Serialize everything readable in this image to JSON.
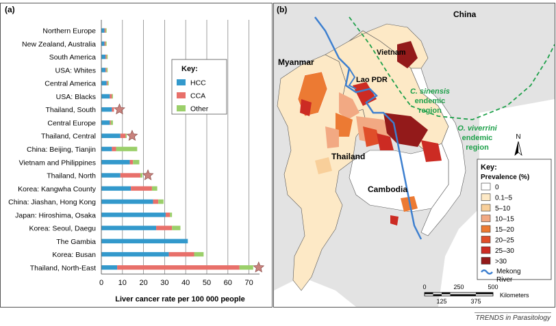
{
  "figure": {
    "panel_a_label": "(a)",
    "panel_b_label": "(b)",
    "footer": "TRENDS in Parasitology"
  },
  "chart_data": {
    "type": "bar",
    "orientation": "horizontal",
    "stacked": true,
    "xlabel": "Liver cancer rate per 100 000 people",
    "ylabel": "",
    "xlim": [
      0,
      75
    ],
    "xticks": [
      0,
      10,
      20,
      30,
      40,
      50,
      60,
      70
    ],
    "grid": "vertical",
    "legend": {
      "title": "Key:",
      "placement": "center-right",
      "entries": [
        "HCC",
        "CCA",
        "Other"
      ]
    },
    "colors": {
      "HCC": "#3399cc",
      "CCA": "#e8706a",
      "Other": "#9bcf6a",
      "star": "#c9827d"
    },
    "categories": [
      "Northern Europe",
      "New Zealand, Australia",
      "South America",
      "USA: Whites",
      "Central America",
      "USA: Blacks",
      "Thailand, South",
      "Central Europe",
      "Thailand, Central",
      "China: Beijing, Tianjin",
      "Vietnam and Philippines",
      "Thailand, North",
      "Korea: Kangwha County",
      "China: Jiashan, Hong Kong",
      "Japan: Hiroshima, Osaka",
      "Korea: Seoul, Daegu",
      "The Gambia",
      "Korea: Busan",
      "Thailand, North-East"
    ],
    "series": [
      {
        "name": "HCC",
        "values": [
          1.5,
          1.5,
          2,
          2,
          2.5,
          4,
          5,
          4,
          9,
          5,
          13.5,
          9,
          14,
          24.5,
          30.5,
          26,
          41,
          32,
          7.5
        ]
      },
      {
        "name": "CCA",
        "values": [
          0.5,
          0.5,
          0.5,
          0.5,
          0.5,
          1,
          1,
          0.5,
          2.5,
          2,
          1.5,
          9.5,
          10,
          2.5,
          2,
          7.5,
          0,
          12,
          58
        ]
      },
      {
        "name": "Other",
        "values": [
          0.5,
          0.5,
          0.5,
          0.5,
          0.5,
          0.5,
          0,
          1,
          0.5,
          10,
          3,
          1,
          2.5,
          2.5,
          1,
          4,
          0,
          4.5,
          6.5
        ]
      }
    ],
    "starred": [
      "Thailand, South",
      "Thailand, Central",
      "Thailand, North",
      "Thailand, North-East"
    ]
  },
  "map": {
    "labels": {
      "china": "China",
      "myanmar": "Myanmar",
      "vietnam": "Vietnam",
      "laos": "Lao PDR",
      "thailand": "Thailand",
      "cambodia": "Cambodia",
      "north": "N"
    },
    "csinensis": [
      "C. sinensis",
      "endemic",
      "region"
    ],
    "oviverrini": [
      "O. viverrini",
      "endemic",
      "region"
    ],
    "key": {
      "title": "Key:",
      "subtitle": "Prevalence (%)",
      "items": [
        {
          "label": "0",
          "color": "#ffffff"
        },
        {
          "label": "0.1–5",
          "color": "#fde9c6"
        },
        {
          "label": "5–10",
          "color": "#f8cf9a"
        },
        {
          "label": "10–15",
          "color": "#f2a983"
        },
        {
          "label": "15–20",
          "color": "#ec7a33"
        },
        {
          "label": "20–25",
          "color": "#e04e2a"
        },
        {
          "label": "25–30",
          "color": "#cc2b23"
        },
        {
          "label": ">30",
          "color": "#931a1a"
        }
      ],
      "river_label": [
        "Mekong",
        "River"
      ]
    },
    "scale": {
      "top_ticks": [
        "0",
        "250",
        "500"
      ],
      "bottom_ticks": [
        "125",
        "375"
      ],
      "unit": "Kilometers"
    },
    "colors": {
      "endemic_line": "#1ea04a",
      "river": "#3d7fcf",
      "land": "#ffffff",
      "border": "#333333"
    }
  }
}
